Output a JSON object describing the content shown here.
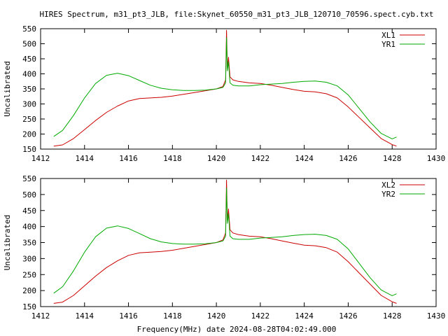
{
  "title": "HIRES Spectrum, m31_pt3_JLB, file:Skynet_60550_m31_pt3_JLB_120710_70596.spect.cyb.txt",
  "footer_xlabel": "Frequency(MHz) date 2024-08-28T04:02:49.000",
  "colors": {
    "red": "#cc0000",
    "green": "#00aa00",
    "axis": "#000000"
  },
  "chart_data": [
    {
      "type": "line",
      "title": "HIRES Spectrum, m31_pt3_JLB, file:Skynet_60550_m31_pt3_JLB_120710_70596.spect.cyb.txt",
      "xlabel": "",
      "ylabel": "Uncalibrated",
      "xlim": [
        1412,
        1430
      ],
      "ylim": [
        150,
        550
      ],
      "xticks": [
        "1412",
        "1414",
        "1416",
        "1418",
        "1420",
        "1422",
        "1424",
        "1426",
        "1428",
        "1430"
      ],
      "yticks": [
        "150",
        "200",
        "250",
        "300",
        "350",
        "400",
        "450",
        "500",
        "550"
      ],
      "legend_position": "top-right",
      "grid": false,
      "series": [
        {
          "name": "XL1",
          "color": "#cc0000",
          "x": [
            1412.6,
            1413.0,
            1413.5,
            1414.0,
            1414.5,
            1415.0,
            1415.5,
            1416.0,
            1416.5,
            1417.0,
            1417.5,
            1418.0,
            1418.5,
            1419.0,
            1419.5,
            1420.0,
            1420.3,
            1420.42,
            1420.46,
            1420.5,
            1420.55,
            1420.62,
            1420.75,
            1421.0,
            1421.5,
            1422.0,
            1422.5,
            1423.0,
            1423.5,
            1424.0,
            1424.5,
            1425.0,
            1425.5,
            1426.0,
            1426.5,
            1427.0,
            1427.5,
            1428.0,
            1428.2
          ],
          "y": [
            160,
            164,
            185,
            215,
            245,
            272,
            293,
            310,
            318,
            320,
            322,
            326,
            332,
            338,
            344,
            350,
            358,
            380,
            545,
            420,
            455,
            390,
            380,
            375,
            370,
            368,
            362,
            355,
            348,
            342,
            340,
            334,
            320,
            290,
            255,
            220,
            185,
            165,
            160
          ]
        },
        {
          "name": "YR1",
          "color": "#00aa00",
          "x": [
            1412.6,
            1413.0,
            1413.5,
            1414.0,
            1414.5,
            1415.0,
            1415.5,
            1416.0,
            1416.5,
            1417.0,
            1417.5,
            1418.0,
            1418.5,
            1419.0,
            1419.5,
            1420.0,
            1420.3,
            1420.42,
            1420.46,
            1420.5,
            1420.55,
            1420.62,
            1420.75,
            1421.0,
            1421.5,
            1422.0,
            1422.5,
            1423.0,
            1423.5,
            1424.0,
            1424.5,
            1425.0,
            1425.5,
            1426.0,
            1426.5,
            1427.0,
            1427.5,
            1428.0,
            1428.2
          ],
          "y": [
            192,
            212,
            262,
            320,
            368,
            395,
            402,
            394,
            378,
            362,
            352,
            347,
            345,
            345,
            346,
            350,
            355,
            370,
            520,
            410,
            440,
            370,
            362,
            360,
            360,
            364,
            366,
            368,
            372,
            375,
            376,
            372,
            360,
            330,
            285,
            240,
            202,
            184,
            190
          ]
        }
      ]
    },
    {
      "type": "line",
      "title": "",
      "xlabel": "Frequency(MHz) date 2024-08-28T04:02:49.000",
      "ylabel": "Uncalibrated",
      "xlim": [
        1412,
        1430
      ],
      "ylim": [
        150,
        550
      ],
      "xticks": [
        "1412",
        "1414",
        "1416",
        "1418",
        "1420",
        "1422",
        "1424",
        "1426",
        "1428",
        "1430"
      ],
      "yticks": [
        "150",
        "200",
        "250",
        "300",
        "350",
        "400",
        "450",
        "500",
        "550"
      ],
      "legend_position": "top-right",
      "grid": false,
      "series": [
        {
          "name": "XL2",
          "color": "#cc0000",
          "x": [
            1412.6,
            1413.0,
            1413.5,
            1414.0,
            1414.5,
            1415.0,
            1415.5,
            1416.0,
            1416.5,
            1417.0,
            1417.5,
            1418.0,
            1418.5,
            1419.0,
            1419.5,
            1420.0,
            1420.3,
            1420.42,
            1420.46,
            1420.5,
            1420.55,
            1420.62,
            1420.75,
            1421.0,
            1421.5,
            1422.0,
            1422.5,
            1423.0,
            1423.5,
            1424.0,
            1424.5,
            1425.0,
            1425.5,
            1426.0,
            1426.5,
            1427.0,
            1427.5,
            1428.0,
            1428.2
          ],
          "y": [
            160,
            164,
            185,
            215,
            245,
            272,
            293,
            310,
            318,
            320,
            322,
            326,
            332,
            338,
            344,
            350,
            358,
            380,
            545,
            420,
            455,
            390,
            380,
            375,
            370,
            368,
            362,
            355,
            348,
            342,
            340,
            334,
            320,
            290,
            255,
            220,
            185,
            165,
            160
          ]
        },
        {
          "name": "YR2",
          "color": "#00aa00",
          "x": [
            1412.6,
            1413.0,
            1413.5,
            1414.0,
            1414.5,
            1415.0,
            1415.5,
            1416.0,
            1416.5,
            1417.0,
            1417.5,
            1418.0,
            1418.5,
            1419.0,
            1419.5,
            1420.0,
            1420.3,
            1420.42,
            1420.46,
            1420.5,
            1420.55,
            1420.62,
            1420.75,
            1421.0,
            1421.5,
            1422.0,
            1422.5,
            1423.0,
            1423.5,
            1424.0,
            1424.5,
            1425.0,
            1425.5,
            1426.0,
            1426.5,
            1427.0,
            1427.5,
            1428.0,
            1428.2
          ],
          "y": [
            192,
            212,
            262,
            320,
            368,
            395,
            402,
            394,
            378,
            362,
            352,
            347,
            345,
            345,
            346,
            350,
            355,
            370,
            520,
            410,
            440,
            370,
            362,
            360,
            360,
            364,
            366,
            368,
            372,
            375,
            376,
            372,
            360,
            330,
            285,
            240,
            202,
            184,
            190
          ]
        }
      ]
    }
  ]
}
